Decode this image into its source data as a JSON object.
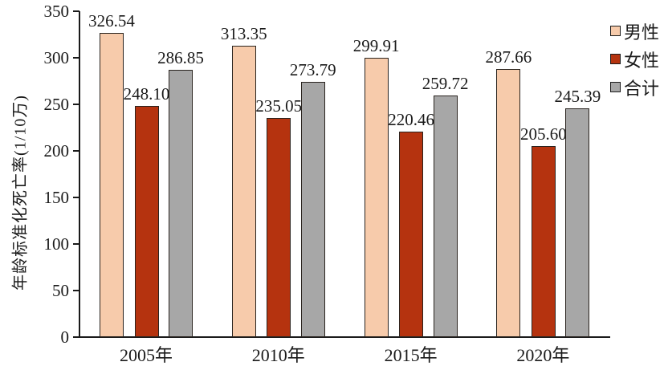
{
  "colors": {
    "male": "#F7CBAB",
    "female": "#B5330F",
    "total": "#A7A7A7",
    "bar_outline": "#2a241f",
    "axis": "#1a1a1a",
    "text": "#1a1a1a"
  },
  "chart_data": {
    "type": "bar",
    "title": "",
    "categories": [
      "2005年",
      "2010年",
      "2015年",
      "2020年"
    ],
    "series": [
      {
        "name": "男性",
        "color_key": "male",
        "values": [
          326.54,
          313.35,
          299.91,
          287.66
        ]
      },
      {
        "name": "女性",
        "color_key": "female",
        "values": [
          248.1,
          235.05,
          220.46,
          205.6
        ]
      },
      {
        "name": "合计",
        "color_key": "total",
        "values": [
          286.85,
          273.79,
          259.72,
          245.39
        ]
      }
    ],
    "xlabel": "",
    "ylabel": "年龄标准化死亡率(1/10万)",
    "ylim": [
      0,
      350
    ],
    "yticks": [
      0,
      50,
      100,
      150,
      200,
      250,
      300,
      350
    ],
    "grid": false,
    "value_labels": true,
    "value_label_decimals": 2,
    "legend_position": "right"
  }
}
